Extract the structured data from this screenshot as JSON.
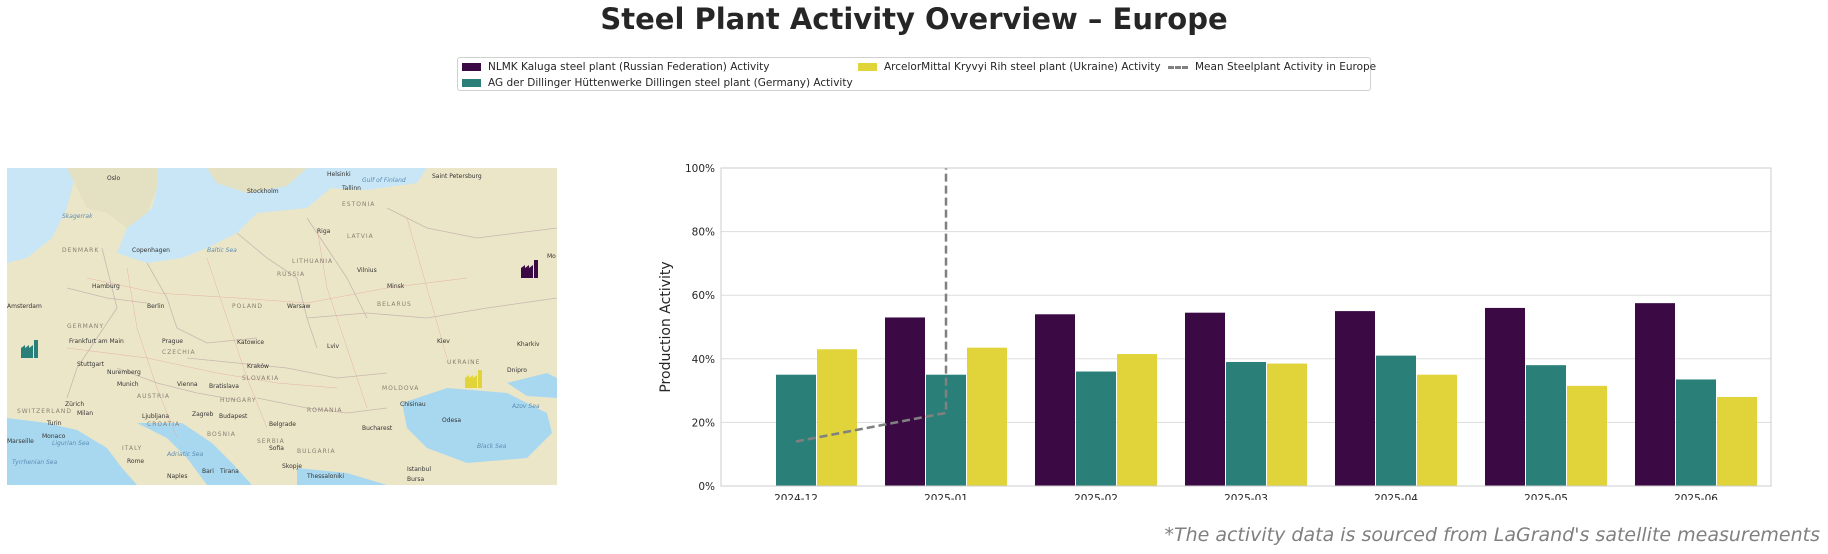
{
  "title": "Steel Plant Activity Overview – Europe",
  "footnote": "*The activity data is sourced from LaGrand's satellite measurements",
  "legend": {
    "s0": "NLMK Kaluga steel plant (Russian Federation) Activity",
    "s1": "AG der Dillinger Hüttenwerke Dillingen steel plant (Germany) Activity",
    "s2": "ArcelorMittal Kryvyi Rih steel plant (Ukraine) Activity",
    "mean": "Mean Steelplant Activity in Europe"
  },
  "map": {
    "labels": [
      "Oslo",
      "Stockholm",
      "Helsinki",
      "Saint Petersburg",
      "Tallinn",
      "Gulf of Finland",
      "ESTONIA",
      "Skagerrak",
      "Riga",
      "LATVIA",
      "DENMARK",
      "Copenhagen",
      "Baltic Sea",
      "LITHUANIA",
      "Vilnius",
      "RUSSIA",
      "Hamburg",
      "Berlin",
      "POLAND",
      "Warsaw",
      "Minsk",
      "BELARUS",
      "Amsterdam",
      "GERMANY",
      "Frankfurt am Main",
      "Prague",
      "CZECHIA",
      "Katowice",
      "Kraków",
      "Lviv",
      "Kiev",
      "Kharkiv",
      "UKRAINE",
      "Dnipro",
      "Stuttgart",
      "Nuremberg",
      "Munich",
      "Vienna",
      "Bratislava",
      "SLOVAKIA",
      "AUSTRIA",
      "Zürich",
      "SWITZERLAND",
      "Budapest",
      "HUNGARY",
      "MOLDOVA",
      "Chisinau",
      "Odesa",
      "Azov Sea",
      "Milan",
      "Ljubljana",
      "Zagreb",
      "CROATIA",
      "Belgrade",
      "ROMANIA",
      "Bucharest",
      "Turin",
      "Monaco",
      "Ligurian Sea",
      "ITALY",
      "Adriatic Sea",
      "BOSNIA",
      "SERBIA",
      "Sofia",
      "BULGARIA",
      "Black Sea",
      "Rome",
      "Tirana",
      "Skopje",
      "Bari",
      "Naples",
      "Istanbul",
      "Bursa",
      "Thessaloniki",
      "Tyrrhenian Sea",
      "Mo",
      "Marseille"
    ],
    "markers": [
      {
        "plant": "NLMK Kaluga",
        "color": "#3b0a45",
        "icon": "factory-icon"
      },
      {
        "plant": "AG der Dillinger Hüttenwerke Dillingen",
        "color": "#2a8079",
        "icon": "factory-icon"
      },
      {
        "plant": "ArcelorMittal Kryvyi Rih",
        "color": "#e1d43a",
        "icon": "factory-icon"
      }
    ]
  },
  "chart_data": {
    "type": "bar",
    "ylabel": "Production Activity",
    "ylim": [
      0,
      100
    ],
    "yticks": [
      0,
      20,
      40,
      60,
      80,
      100
    ],
    "ytick_labels": [
      "0%",
      "20%",
      "40%",
      "60%",
      "80%",
      "100%"
    ],
    "grid": true,
    "categories": [
      "2024-12",
      "2025-01",
      "2025-02",
      "2025-03",
      "2025-04",
      "2025-05",
      "2025-06"
    ],
    "series": [
      {
        "name": "NLMK Kaluga steel plant (Russian Federation) Activity",
        "color": "#3b0a45",
        "values": [
          null,
          53,
          54,
          54.5,
          55,
          56,
          57.5
        ]
      },
      {
        "name": "AG der Dillinger Hüttenwerke Dillingen steel plant (Germany) Activity",
        "color": "#2a8079",
        "values": [
          35,
          35,
          36,
          39,
          41,
          38,
          33.5
        ]
      },
      {
        "name": "ArcelorMittal Kryvyi Rih steel plant (Ukraine) Activity",
        "color": "#e1d43a",
        "values": [
          43,
          43.5,
          41.5,
          38.5,
          35,
          31.5,
          28
        ]
      }
    ],
    "mean_line": {
      "name": "Mean Steelplant Activity in Europe",
      "color": "#808080",
      "style": "dashed",
      "points": [
        [
          "2024-12",
          14
        ],
        [
          "2025-01",
          23
        ],
        [
          "2025-01",
          100
        ]
      ]
    }
  }
}
